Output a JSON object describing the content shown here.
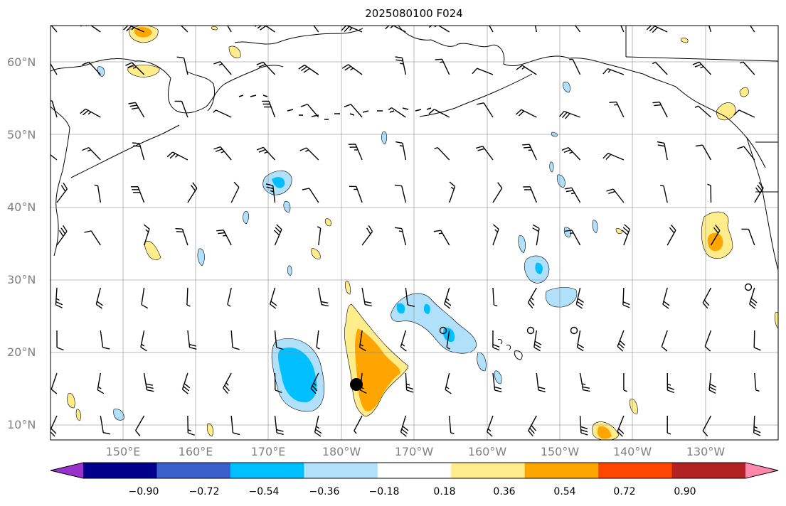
{
  "title": "2025080100 F024",
  "lat_labels": [
    "60°N",
    "50°N",
    "40°N",
    "30°N",
    "20°N",
    "10°N"
  ],
  "lon_labels": [
    "150°E",
    "160°E",
    "170°E",
    "180°W",
    "170°W",
    "160°W",
    "150°W",
    "140°W",
    "130°W"
  ],
  "colorbar": {
    "ticks": [
      "−0.90",
      "−0.72",
      "−0.54",
      "−0.36",
      "−0.18",
      "0.18",
      "0.36",
      "0.54",
      "0.72",
      "0.90"
    ],
    "colors": [
      "#9932cc",
      "#00008b",
      "#3a5fcd",
      "#00bfff",
      "#b0e0fa",
      "#ffffff",
      "#ffec8b",
      "#ffa500",
      "#ff4500",
      "#b22222",
      "#ff88aa"
    ]
  },
  "colors": {
    "blue_light": "#b0e0fa",
    "blue_mid": "#00bfff",
    "yellow": "#ffec8b",
    "orange": "#ffa500"
  }
}
